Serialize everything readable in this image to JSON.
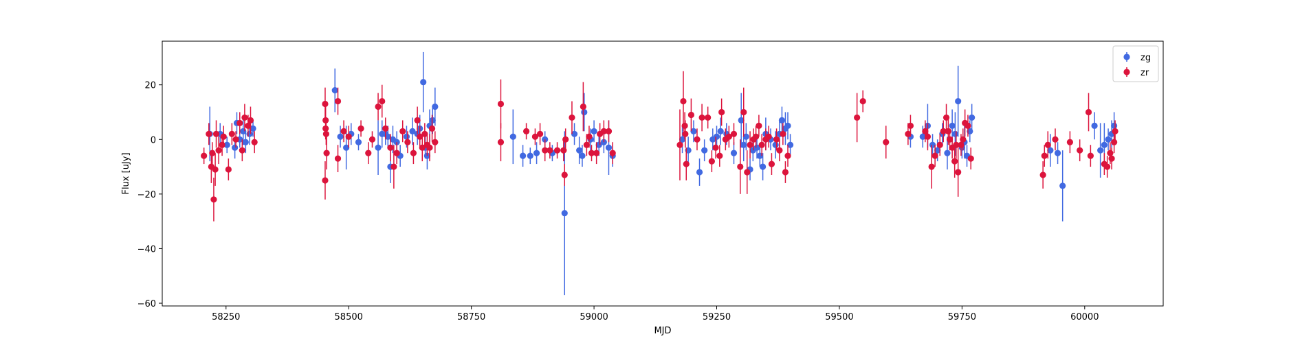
{
  "chart_data": {
    "type": "scatter",
    "xlabel": "MJD",
    "ylabel": "Flux [uJy]",
    "xlim": [
      58120,
      60160
    ],
    "ylim": [
      -61,
      36
    ],
    "x_ticks": [
      58250,
      58500,
      58750,
      59000,
      59250,
      59500,
      59750,
      60000
    ],
    "y_ticks": [
      -60,
      -40,
      -20,
      0,
      20
    ],
    "x_tick_labels": [
      "58250",
      "58500",
      "58750",
      "59000",
      "59250",
      "59500",
      "59750",
      "60000"
    ],
    "y_tick_labels": [
      "−60",
      "−40",
      "−20",
      "0",
      "20"
    ],
    "grid": false,
    "legend_position": "top-right",
    "series": [
      {
        "name": "zg",
        "color": "#4169e1",
        "points": [
          [
            58217,
            2,
            10
          ],
          [
            58238,
            2,
            4
          ],
          [
            58252,
            -2,
            3
          ],
          [
            58268,
            -3,
            4
          ],
          [
            58272,
            6,
            4
          ],
          [
            58278,
            0,
            3
          ],
          [
            58285,
            3,
            5
          ],
          [
            58290,
            -1,
            4
          ],
          [
            58298,
            2,
            4
          ],
          [
            58305,
            4,
            3
          ],
          [
            58472,
            18,
            8
          ],
          [
            58483,
            1,
            4
          ],
          [
            58495,
            -3,
            8
          ],
          [
            58505,
            2,
            4
          ],
          [
            58520,
            -1,
            3
          ],
          [
            58560,
            -3,
            10
          ],
          [
            58568,
            2,
            5
          ],
          [
            58575,
            2,
            4
          ],
          [
            58580,
            1,
            4
          ],
          [
            58585,
            -10,
            6
          ],
          [
            58590,
            0,
            5
          ],
          [
            58598,
            -1,
            4
          ],
          [
            58605,
            -6,
            4
          ],
          [
            58618,
            1,
            4
          ],
          [
            58630,
            3,
            5
          ],
          [
            58640,
            2,
            4
          ],
          [
            58645,
            4,
            5
          ],
          [
            58652,
            21,
            11
          ],
          [
            58656,
            -3,
            4
          ],
          [
            58660,
            -6,
            5
          ],
          [
            58665,
            5,
            6
          ],
          [
            58671,
            7,
            5
          ],
          [
            58676,
            12,
            7
          ],
          [
            58835,
            1,
            10
          ],
          [
            58855,
            -6,
            4
          ],
          [
            58870,
            -6,
            3
          ],
          [
            58883,
            -5,
            4
          ],
          [
            58900,
            0,
            3
          ],
          [
            58915,
            -5,
            3
          ],
          [
            58940,
            -27,
            30
          ],
          [
            58960,
            2,
            4
          ],
          [
            58970,
            -4,
            5
          ],
          [
            58976,
            -6,
            4
          ],
          [
            58980,
            10,
            7
          ],
          [
            58993,
            0,
            4
          ],
          [
            59000,
            3,
            4
          ],
          [
            59010,
            -2,
            4
          ],
          [
            59020,
            -1,
            4
          ],
          [
            59030,
            -3,
            10
          ],
          [
            59038,
            -6,
            4
          ],
          [
            59180,
            0,
            5
          ],
          [
            59192,
            -4,
            5
          ],
          [
            59203,
            3,
            4
          ],
          [
            59215,
            -12,
            5
          ],
          [
            59225,
            -4,
            4
          ],
          [
            59242,
            0,
            4
          ],
          [
            59250,
            1,
            4
          ],
          [
            59258,
            3,
            5
          ],
          [
            59270,
            2,
            4
          ],
          [
            59285,
            -5,
            4
          ],
          [
            59300,
            7,
            10
          ],
          [
            59305,
            -2,
            6
          ],
          [
            59310,
            1,
            5
          ],
          [
            59318,
            -11,
            4
          ],
          [
            59324,
            -4,
            4
          ],
          [
            59332,
            -3,
            4
          ],
          [
            59338,
            -6,
            4
          ],
          [
            59344,
            -10,
            5
          ],
          [
            59350,
            2,
            6
          ],
          [
            59360,
            0,
            4
          ],
          [
            59370,
            -2,
            5
          ],
          [
            59378,
            2,
            5
          ],
          [
            59383,
            7,
            5
          ],
          [
            59390,
            4,
            6
          ],
          [
            59395,
            5,
            5
          ],
          [
            59400,
            -2,
            4
          ],
          [
            59645,
            1,
            4
          ],
          [
            59670,
            1,
            4
          ],
          [
            59680,
            5,
            8
          ],
          [
            59690,
            -2,
            4
          ],
          [
            59700,
            -4,
            4
          ],
          [
            59710,
            2,
            4
          ],
          [
            59720,
            -5,
            6
          ],
          [
            59730,
            5,
            6
          ],
          [
            59736,
            2,
            8
          ],
          [
            59742,
            14,
            13
          ],
          [
            59750,
            -3,
            4
          ],
          [
            59755,
            -1,
            6
          ],
          [
            59760,
            -6,
            4
          ],
          [
            59766,
            3,
            4
          ],
          [
            59770,
            8,
            5
          ],
          [
            59930,
            -4,
            6
          ],
          [
            59945,
            -5,
            4
          ],
          [
            59955,
            -17,
            13
          ],
          [
            60020,
            5,
            5
          ],
          [
            60032,
            -4,
            10
          ],
          [
            60040,
            -2,
            8
          ],
          [
            60048,
            0,
            4
          ],
          [
            60055,
            2,
            5
          ],
          [
            60060,
            5,
            5
          ]
        ]
      },
      {
        "name": "zr",
        "color": "#dc143c",
        "points": [
          [
            58205,
            -6,
            3
          ],
          [
            58215,
            2,
            4
          ],
          [
            58220,
            -10,
            6
          ],
          [
            58222,
            -5,
            4
          ],
          [
            58225,
            -22,
            8
          ],
          [
            58228,
            -11,
            6
          ],
          [
            58230,
            2,
            5
          ],
          [
            58235,
            -4,
            5
          ],
          [
            58242,
            -2,
            4
          ],
          [
            58245,
            1,
            4
          ],
          [
            58255,
            -11,
            4
          ],
          [
            58262,
            2,
            4
          ],
          [
            58270,
            0,
            3
          ],
          [
            58278,
            6,
            4
          ],
          [
            58283,
            -4,
            4
          ],
          [
            58288,
            8,
            5
          ],
          [
            58295,
            5,
            4
          ],
          [
            58300,
            7,
            5
          ],
          [
            58308,
            -1,
            4
          ],
          [
            58452,
            -15,
            7
          ],
          [
            58452,
            13,
            6
          ],
          [
            58453,
            7,
            5
          ],
          [
            58453,
            4,
            4
          ],
          [
            58454,
            2,
            4
          ],
          [
            58455,
            -5,
            6
          ],
          [
            58478,
            14,
            5
          ],
          [
            58478,
            -7,
            5
          ],
          [
            58490,
            3,
            4
          ],
          [
            58500,
            1,
            4
          ],
          [
            58525,
            4,
            3
          ],
          [
            58540,
            -5,
            4
          ],
          [
            58548,
            0,
            3
          ],
          [
            58560,
            12,
            5
          ],
          [
            58568,
            14,
            6
          ],
          [
            58575,
            4,
            4
          ],
          [
            58585,
            -3,
            5
          ],
          [
            58592,
            -10,
            8
          ],
          [
            58598,
            -5,
            4
          ],
          [
            58610,
            3,
            4
          ],
          [
            58620,
            -1,
            4
          ],
          [
            58632,
            -5,
            4
          ],
          [
            58640,
            7,
            5
          ],
          [
            58645,
            1,
            4
          ],
          [
            58650,
            -3,
            5
          ],
          [
            58655,
            2,
            4
          ],
          [
            58660,
            -2,
            4
          ],
          [
            58665,
            -3,
            5
          ],
          [
            58670,
            4,
            5
          ],
          [
            58676,
            -1,
            4
          ],
          [
            58810,
            13,
            9
          ],
          [
            58810,
            -1,
            7
          ],
          [
            58862,
            3,
            3
          ],
          [
            58880,
            1,
            3
          ],
          [
            58890,
            2,
            4
          ],
          [
            58900,
            -4,
            4
          ],
          [
            58910,
            -4,
            3
          ],
          [
            58925,
            -4,
            3
          ],
          [
            58938,
            -4,
            4
          ],
          [
            58940,
            -13,
            4
          ],
          [
            58942,
            0,
            4
          ],
          [
            58955,
            8,
            6
          ],
          [
            58978,
            12,
            9
          ],
          [
            58985,
            -2,
            4
          ],
          [
            58990,
            1,
            4
          ],
          [
            58995,
            -5,
            3
          ],
          [
            59005,
            -5,
            4
          ],
          [
            59012,
            2,
            4
          ],
          [
            59020,
            3,
            4
          ],
          [
            59030,
            3,
            4
          ],
          [
            59038,
            -5,
            4
          ],
          [
            59175,
            -2,
            13
          ],
          [
            59182,
            14,
            11
          ],
          [
            59185,
            5,
            5
          ],
          [
            59186,
            2,
            5
          ],
          [
            59188,
            -9,
            6
          ],
          [
            59198,
            9,
            6
          ],
          [
            59210,
            0,
            4
          ],
          [
            59220,
            8,
            5
          ],
          [
            59232,
            8,
            4
          ],
          [
            59240,
            -8,
            4
          ],
          [
            59248,
            -3,
            4
          ],
          [
            59256,
            -6,
            4
          ],
          [
            59260,
            10,
            5
          ],
          [
            59268,
            0,
            4
          ],
          [
            59275,
            1,
            4
          ],
          [
            59285,
            2,
            4
          ],
          [
            59298,
            -10,
            10
          ],
          [
            59305,
            10,
            9
          ],
          [
            59312,
            -12,
            8
          ],
          [
            59318,
            -2,
            5
          ],
          [
            59325,
            0,
            4
          ],
          [
            59330,
            1,
            4
          ],
          [
            59336,
            5,
            4
          ],
          [
            59342,
            -2,
            4
          ],
          [
            59350,
            0,
            4
          ],
          [
            59356,
            1,
            4
          ],
          [
            59362,
            -9,
            4
          ],
          [
            59372,
            0,
            4
          ],
          [
            59378,
            -4,
            4
          ],
          [
            59385,
            2,
            4
          ],
          [
            59390,
            -12,
            4
          ],
          [
            59395,
            -6,
            4
          ],
          [
            59536,
            8,
            9
          ],
          [
            59548,
            14,
            4
          ],
          [
            59595,
            -1,
            6
          ],
          [
            59640,
            2,
            4
          ],
          [
            59645,
            5,
            4
          ],
          [
            59675,
            3,
            4
          ],
          [
            59680,
            1,
            5
          ],
          [
            59688,
            -10,
            8
          ],
          [
            59695,
            -6,
            4
          ],
          [
            59705,
            -2,
            4
          ],
          [
            59712,
            3,
            4
          ],
          [
            59718,
            8,
            5
          ],
          [
            59722,
            3,
            5
          ],
          [
            59725,
            0,
            4
          ],
          [
            59730,
            -3,
            4
          ],
          [
            59735,
            -8,
            6
          ],
          [
            59738,
            -2,
            5
          ],
          [
            59742,
            -12,
            9
          ],
          [
            59748,
            -2,
            4
          ],
          [
            59752,
            0,
            4
          ],
          [
            59756,
            6,
            5
          ],
          [
            59762,
            5,
            4
          ],
          [
            59768,
            -7,
            4
          ],
          [
            59915,
            -13,
            5
          ],
          [
            59918,
            -6,
            4
          ],
          [
            59925,
            -2,
            5
          ],
          [
            59940,
            0,
            4
          ],
          [
            59970,
            -1,
            4
          ],
          [
            59990,
            -4,
            4
          ],
          [
            60008,
            10,
            7
          ],
          [
            60012,
            -6,
            4
          ],
          [
            60040,
            -9,
            4
          ],
          [
            60046,
            -10,
            4
          ],
          [
            60052,
            -5,
            4
          ],
          [
            60055,
            -7,
            4
          ],
          [
            60060,
            -1,
            4
          ],
          [
            60062,
            3,
            4
          ]
        ]
      }
    ]
  }
}
